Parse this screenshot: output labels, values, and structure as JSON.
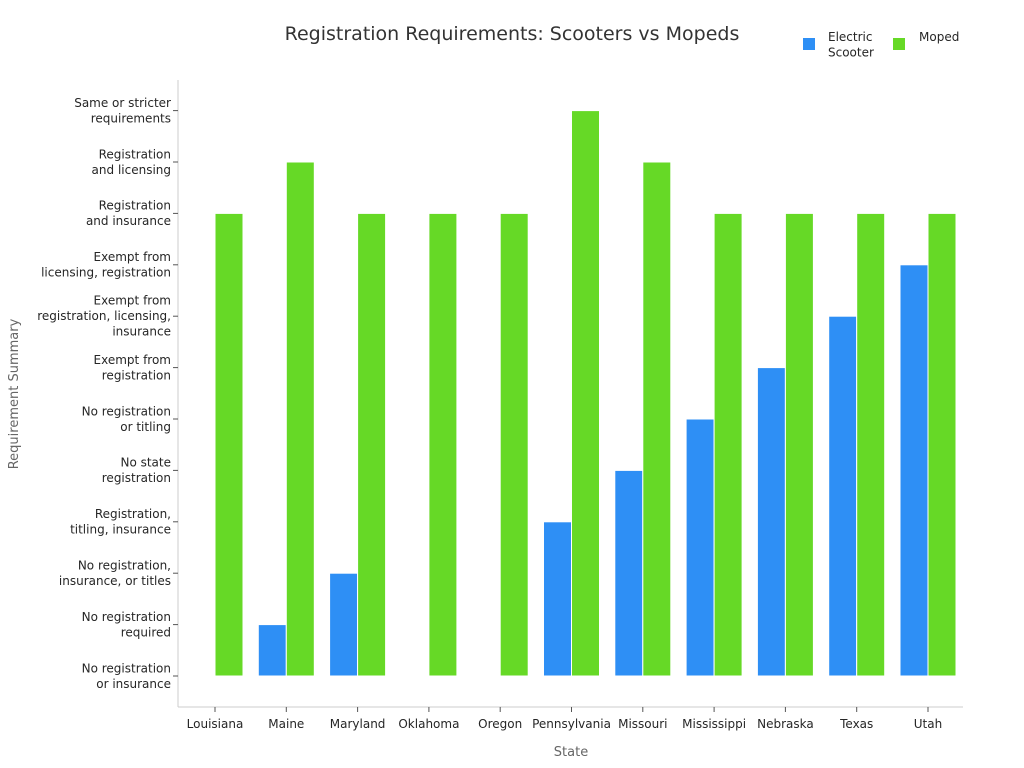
{
  "chart_data": {
    "type": "bar",
    "title": "Registration Requirements: Scooters vs Mopeds",
    "xlabel": "State",
    "ylabel": "Requirement Summary",
    "categories": [
      "Louisiana",
      "Maine",
      "Maryland",
      "Oklahoma",
      "Oregon",
      "Pennsylvania",
      "Missouri",
      "Mississippi",
      "Nebraska",
      "Texas",
      "Utah"
    ],
    "y_categories": [
      [
        "No registration",
        "or insurance"
      ],
      [
        "No registration",
        "required"
      ],
      [
        "No registration,",
        "insurance, or titles"
      ],
      [
        "Registration,",
        "titling, insurance"
      ],
      [
        "No state",
        "registration"
      ],
      [
        "No registration",
        "or titling"
      ],
      [
        "Exempt from",
        "registration"
      ],
      [
        "Exempt from",
        "registration, licensing,",
        "insurance"
      ],
      [
        "Exempt from",
        "licensing, registration"
      ],
      [
        "Registration",
        "and insurance"
      ],
      [
        "Registration",
        "and licensing"
      ],
      [
        "Same or stricter",
        "requirements"
      ]
    ],
    "ylim": [
      0,
      11
    ],
    "legend_position": "top-right",
    "series": [
      {
        "name": "Electric Scooter",
        "legend_lines": [
          "Electric",
          "Scooter"
        ],
        "color": "#2e8ff5",
        "values": [
          0,
          1,
          2,
          0,
          0,
          3,
          4,
          5,
          6,
          7,
          8
        ]
      },
      {
        "name": "Moped",
        "legend_lines": [
          "Moped"
        ],
        "color": "#66d926",
        "values": [
          9,
          10,
          9,
          9,
          9,
          11,
          10,
          9,
          9,
          9,
          9
        ]
      }
    ]
  }
}
